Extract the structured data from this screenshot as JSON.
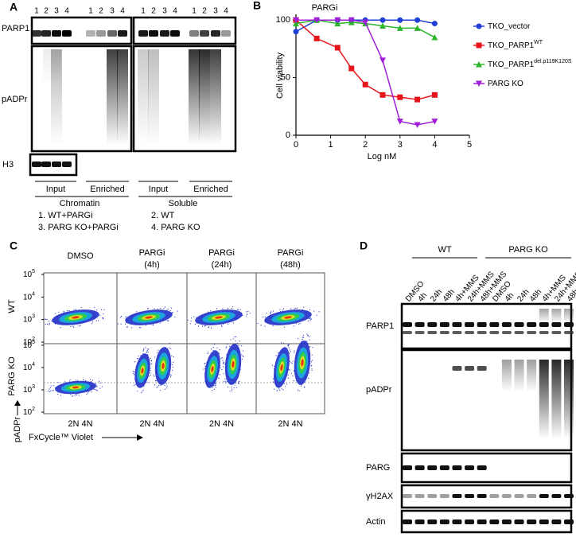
{
  "panel_a": {
    "letter": "A",
    "lanes": [
      "1",
      "2",
      "3",
      "4"
    ],
    "rows": [
      "PARP1",
      "pADPr",
      "H3"
    ],
    "fractions": [
      "Input",
      "Enriched"
    ],
    "groups": [
      "Chromatin",
      "Soluble"
    ],
    "key": [
      "1. WT+PARGi",
      "3. PARG KO+PARGi",
      "2. WT",
      "4. PARG KO"
    ]
  },
  "panel_b": {
    "letter": "B"
  },
  "chart_data": {
    "type": "line",
    "title": "PARGi",
    "x_label": "Log nM",
    "y_label": "Cell viability",
    "x": [
      0,
      0.6,
      1.2,
      1.6,
      2,
      2.5,
      3,
      3.5,
      4
    ],
    "series": [
      {
        "name": "TKO_vector",
        "color": "#1f3fd6",
        "marker": "circle",
        "values": [
          90,
          100,
          100,
          100,
          100,
          100,
          100,
          100,
          97
        ]
      },
      {
        "name": "TKO_PARP1",
        "superscript": "WT",
        "color": "#e8141b",
        "marker": "square",
        "values": [
          100,
          84,
          76,
          58,
          44,
          35,
          33,
          31,
          35
        ]
      },
      {
        "name": "TKO_PARP1",
        "superscript": "del.p119K120S",
        "color": "#2cb52c",
        "marker": "triangle",
        "values": [
          97,
          100,
          97,
          98,
          97,
          95,
          93,
          93,
          85
        ]
      },
      {
        "name": "PARG KO",
        "color": "#a020d8",
        "marker": "triangle-down",
        "values": [
          100,
          100,
          100,
          100,
          98,
          65,
          12,
          9,
          12
        ]
      }
    ],
    "xlim": [
      0,
      5
    ],
    "xticks": [
      0,
      1,
      2,
      3,
      4,
      5
    ],
    "ylim": [
      0,
      105
    ],
    "yticks": [
      0,
      50,
      100
    ],
    "legend": "right"
  },
  "panel_c": {
    "letter": "C",
    "columns": [
      [
        "DMSO"
      ],
      [
        "PARGi",
        "(4h)"
      ],
      [
        "PARGi",
        "(24h)"
      ],
      [
        "PARGi",
        "(48h)"
      ]
    ],
    "rows": [
      "WT",
      "PARG KO"
    ],
    "yticks": [
      {
        "base": "10",
        "exp": "5"
      },
      {
        "base": "10",
        "exp": "4"
      },
      {
        "base": "10",
        "exp": "3"
      },
      {
        "base": "10",
        "exp": "2"
      }
    ],
    "x_ticks": "2N 4N",
    "y_label": "pADPr",
    "x_label": "FxCycle™ Violet"
  },
  "panel_d": {
    "letter": "D",
    "groups": [
      "WT",
      "PARG KO"
    ],
    "lanes": [
      "DMSO",
      "4h",
      "24h",
      "48h",
      "4h+MMS",
      "24h+MMS",
      "48h+MMS"
    ],
    "rows": [
      "PARP1",
      "pADPr",
      "PARG",
      "γH2AX",
      "Actin"
    ]
  }
}
